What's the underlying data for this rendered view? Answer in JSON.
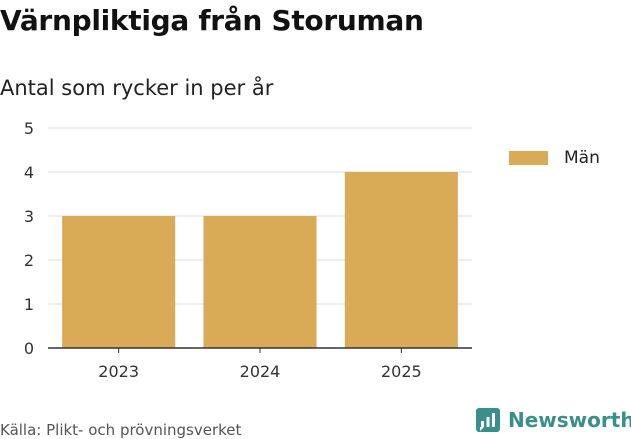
{
  "header": {
    "title": "Värnpliktiga från Storuman",
    "subtitle": "Antal som rycker in per år"
  },
  "footer": {
    "source": "Källa: Plikt- och prövningsverket",
    "brand": "Newsworthy",
    "brand_color": "#3a8f8c"
  },
  "icons": {
    "brand": "newsworthy-logo-icon"
  },
  "chart_data": {
    "type": "bar",
    "title": "Värnpliktiga från Storuman",
    "subtitle": "Antal som rycker in per år",
    "xlabel": "",
    "ylabel": "",
    "categories": [
      "2023",
      "2024",
      "2025"
    ],
    "series": [
      {
        "name": "Män",
        "values": [
          3,
          3,
          4
        ],
        "color": "#d9ab57"
      }
    ],
    "ylim": [
      0,
      5
    ],
    "yticks": [
      0,
      1,
      2,
      3,
      4,
      5
    ],
    "grid": true,
    "legend": "right"
  }
}
